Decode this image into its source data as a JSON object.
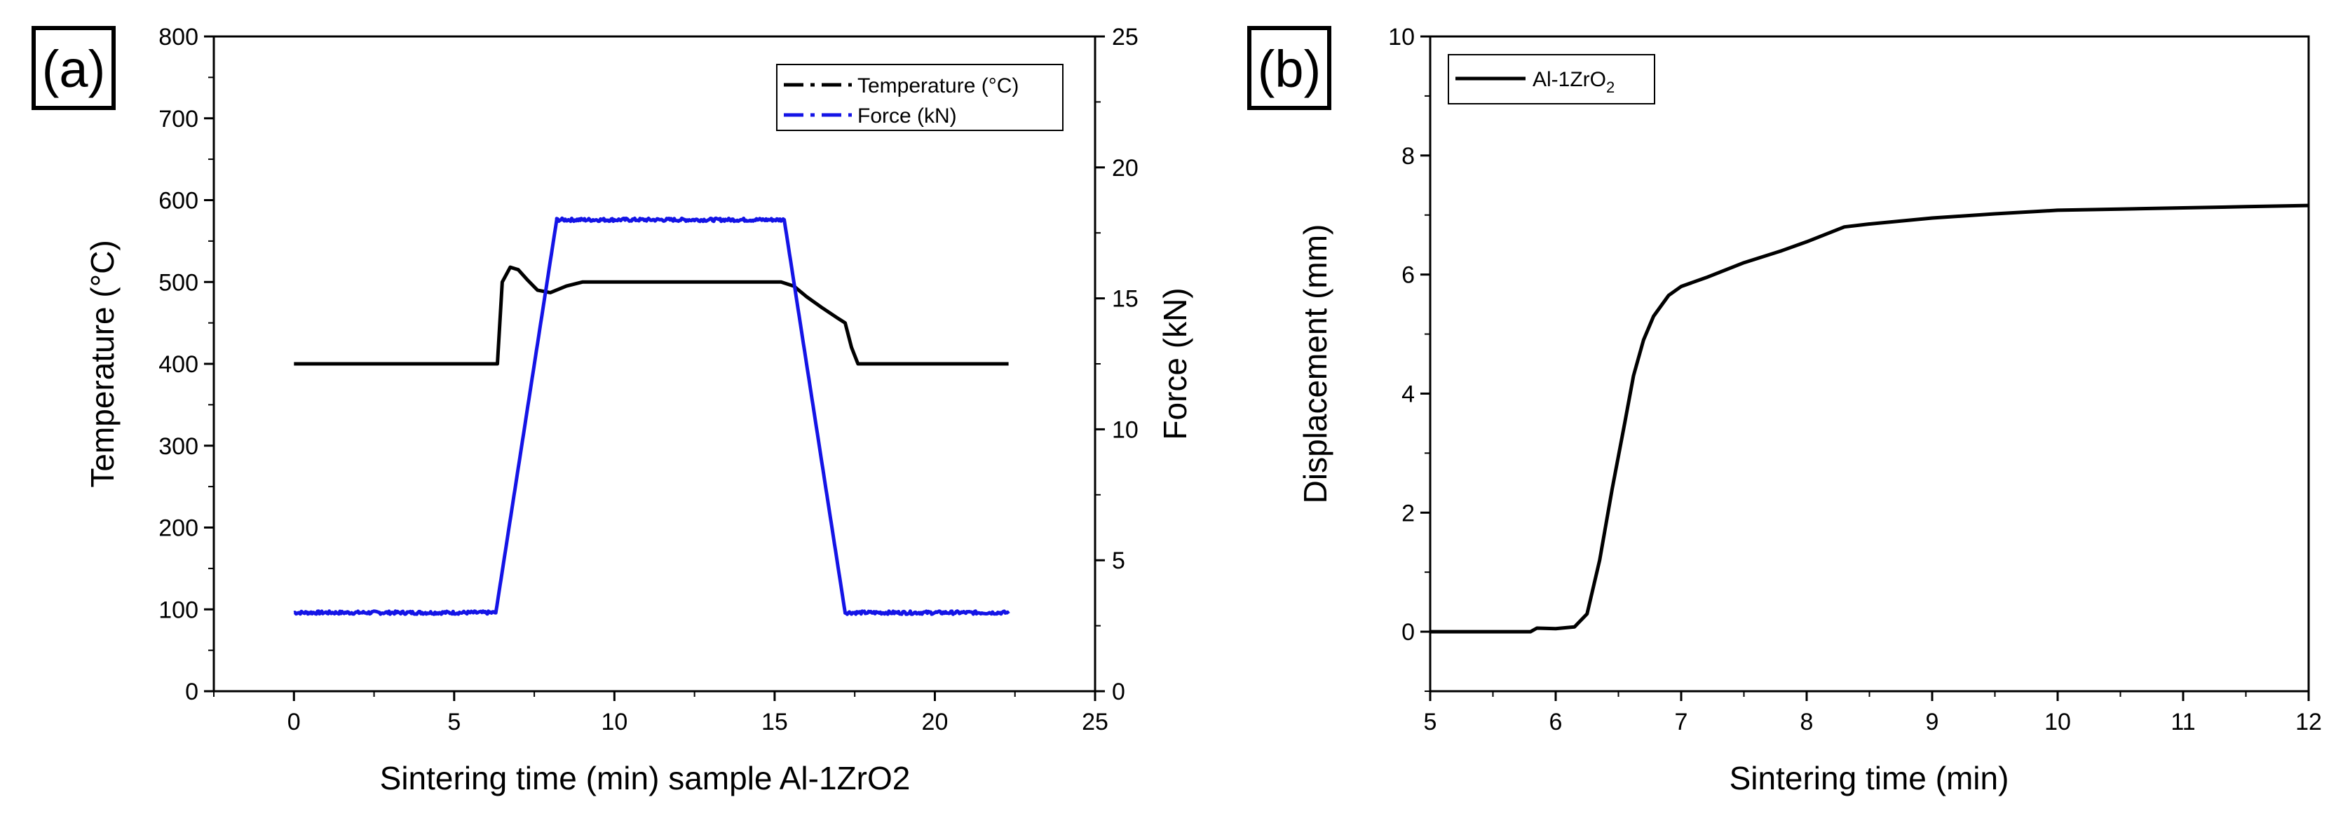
{
  "chart_data": [
    {
      "panel_label": "(a)",
      "type": "line",
      "xlabel": "Sintering time (min) sample Al-1ZrO2",
      "ylabel": "Temperature (°C)",
      "y2label": "Force (kN)",
      "xlim": [
        -2.5,
        25
      ],
      "ylim": [
        0,
        800
      ],
      "y2lim": [
        0,
        25
      ],
      "xticks": [
        0,
        5,
        10,
        15,
        20,
        25
      ],
      "yticks": [
        0,
        100,
        200,
        300,
        400,
        500,
        600,
        700,
        800
      ],
      "y2ticks": [
        0,
        5,
        10,
        15,
        20,
        25
      ],
      "legend_position": "top-right",
      "series": [
        {
          "name": "Temperature (°C)",
          "axis": "left",
          "color": "#000000",
          "points": [
            [
              0,
              400
            ],
            [
              6.2,
              400
            ],
            [
              6.35,
              400
            ],
            [
              6.5,
              500
            ],
            [
              6.75,
              518
            ],
            [
              7.0,
              515
            ],
            [
              7.3,
              502
            ],
            [
              7.6,
              490
            ],
            [
              8.0,
              487
            ],
            [
              8.5,
              495
            ],
            [
              9.0,
              500
            ],
            [
              10,
              500
            ],
            [
              12,
              500
            ],
            [
              14,
              500
            ],
            [
              15.2,
              500
            ],
            [
              15.6,
              495
            ],
            [
              16.0,
              482
            ],
            [
              16.5,
              468
            ],
            [
              17.0,
              455
            ],
            [
              17.2,
              450
            ],
            [
              17.4,
              420
            ],
            [
              17.6,
              400
            ],
            [
              19,
              400
            ],
            [
              22.3,
              400
            ]
          ]
        },
        {
          "name": "Force (kN)",
          "axis": "right",
          "color": "#1414e6",
          "noisy": true,
          "points": [
            [
              0,
              3.0
            ],
            [
              6.3,
              3.0
            ],
            [
              8.2,
              18.0
            ],
            [
              15.3,
              18.0
            ],
            [
              17.2,
              3.0
            ],
            [
              22.3,
              3.0
            ]
          ]
        }
      ]
    },
    {
      "panel_label": "(b)",
      "type": "line",
      "xlabel": "Sintering time (min)",
      "ylabel": "Displacement (mm)",
      "xlim": [
        5,
        12
      ],
      "ylim": [
        -1,
        10
      ],
      "xticks": [
        5,
        6,
        7,
        8,
        9,
        10,
        11,
        12
      ],
      "yticks": [
        0,
        2,
        4,
        6,
        8,
        10
      ],
      "legend_position": "top-left",
      "series": [
        {
          "name": "Al-1ZrO2",
          "legend_main": "Al-1ZrO",
          "legend_sub": "2",
          "color": "#000000",
          "points": [
            [
              5.0,
              0
            ],
            [
              5.8,
              0
            ],
            [
              5.85,
              0.06
            ],
            [
              6.0,
              0.05
            ],
            [
              6.15,
              0.08
            ],
            [
              6.25,
              0.3
            ],
            [
              6.35,
              1.2
            ],
            [
              6.45,
              2.4
            ],
            [
              6.55,
              3.5
            ],
            [
              6.62,
              4.3
            ],
            [
              6.7,
              4.9
            ],
            [
              6.78,
              5.3
            ],
            [
              6.9,
              5.65
            ],
            [
              7.0,
              5.8
            ],
            [
              7.2,
              5.95
            ],
            [
              7.5,
              6.2
            ],
            [
              7.8,
              6.4
            ],
            [
              8.0,
              6.55
            ],
            [
              8.3,
              6.8
            ],
            [
              8.5,
              6.85
            ],
            [
              9.0,
              6.95
            ],
            [
              9.5,
              7.02
            ],
            [
              10.0,
              7.08
            ],
            [
              10.5,
              7.1
            ],
            [
              11.0,
              7.12
            ],
            [
              11.5,
              7.14
            ],
            [
              12.0,
              7.16
            ]
          ]
        }
      ]
    }
  ]
}
